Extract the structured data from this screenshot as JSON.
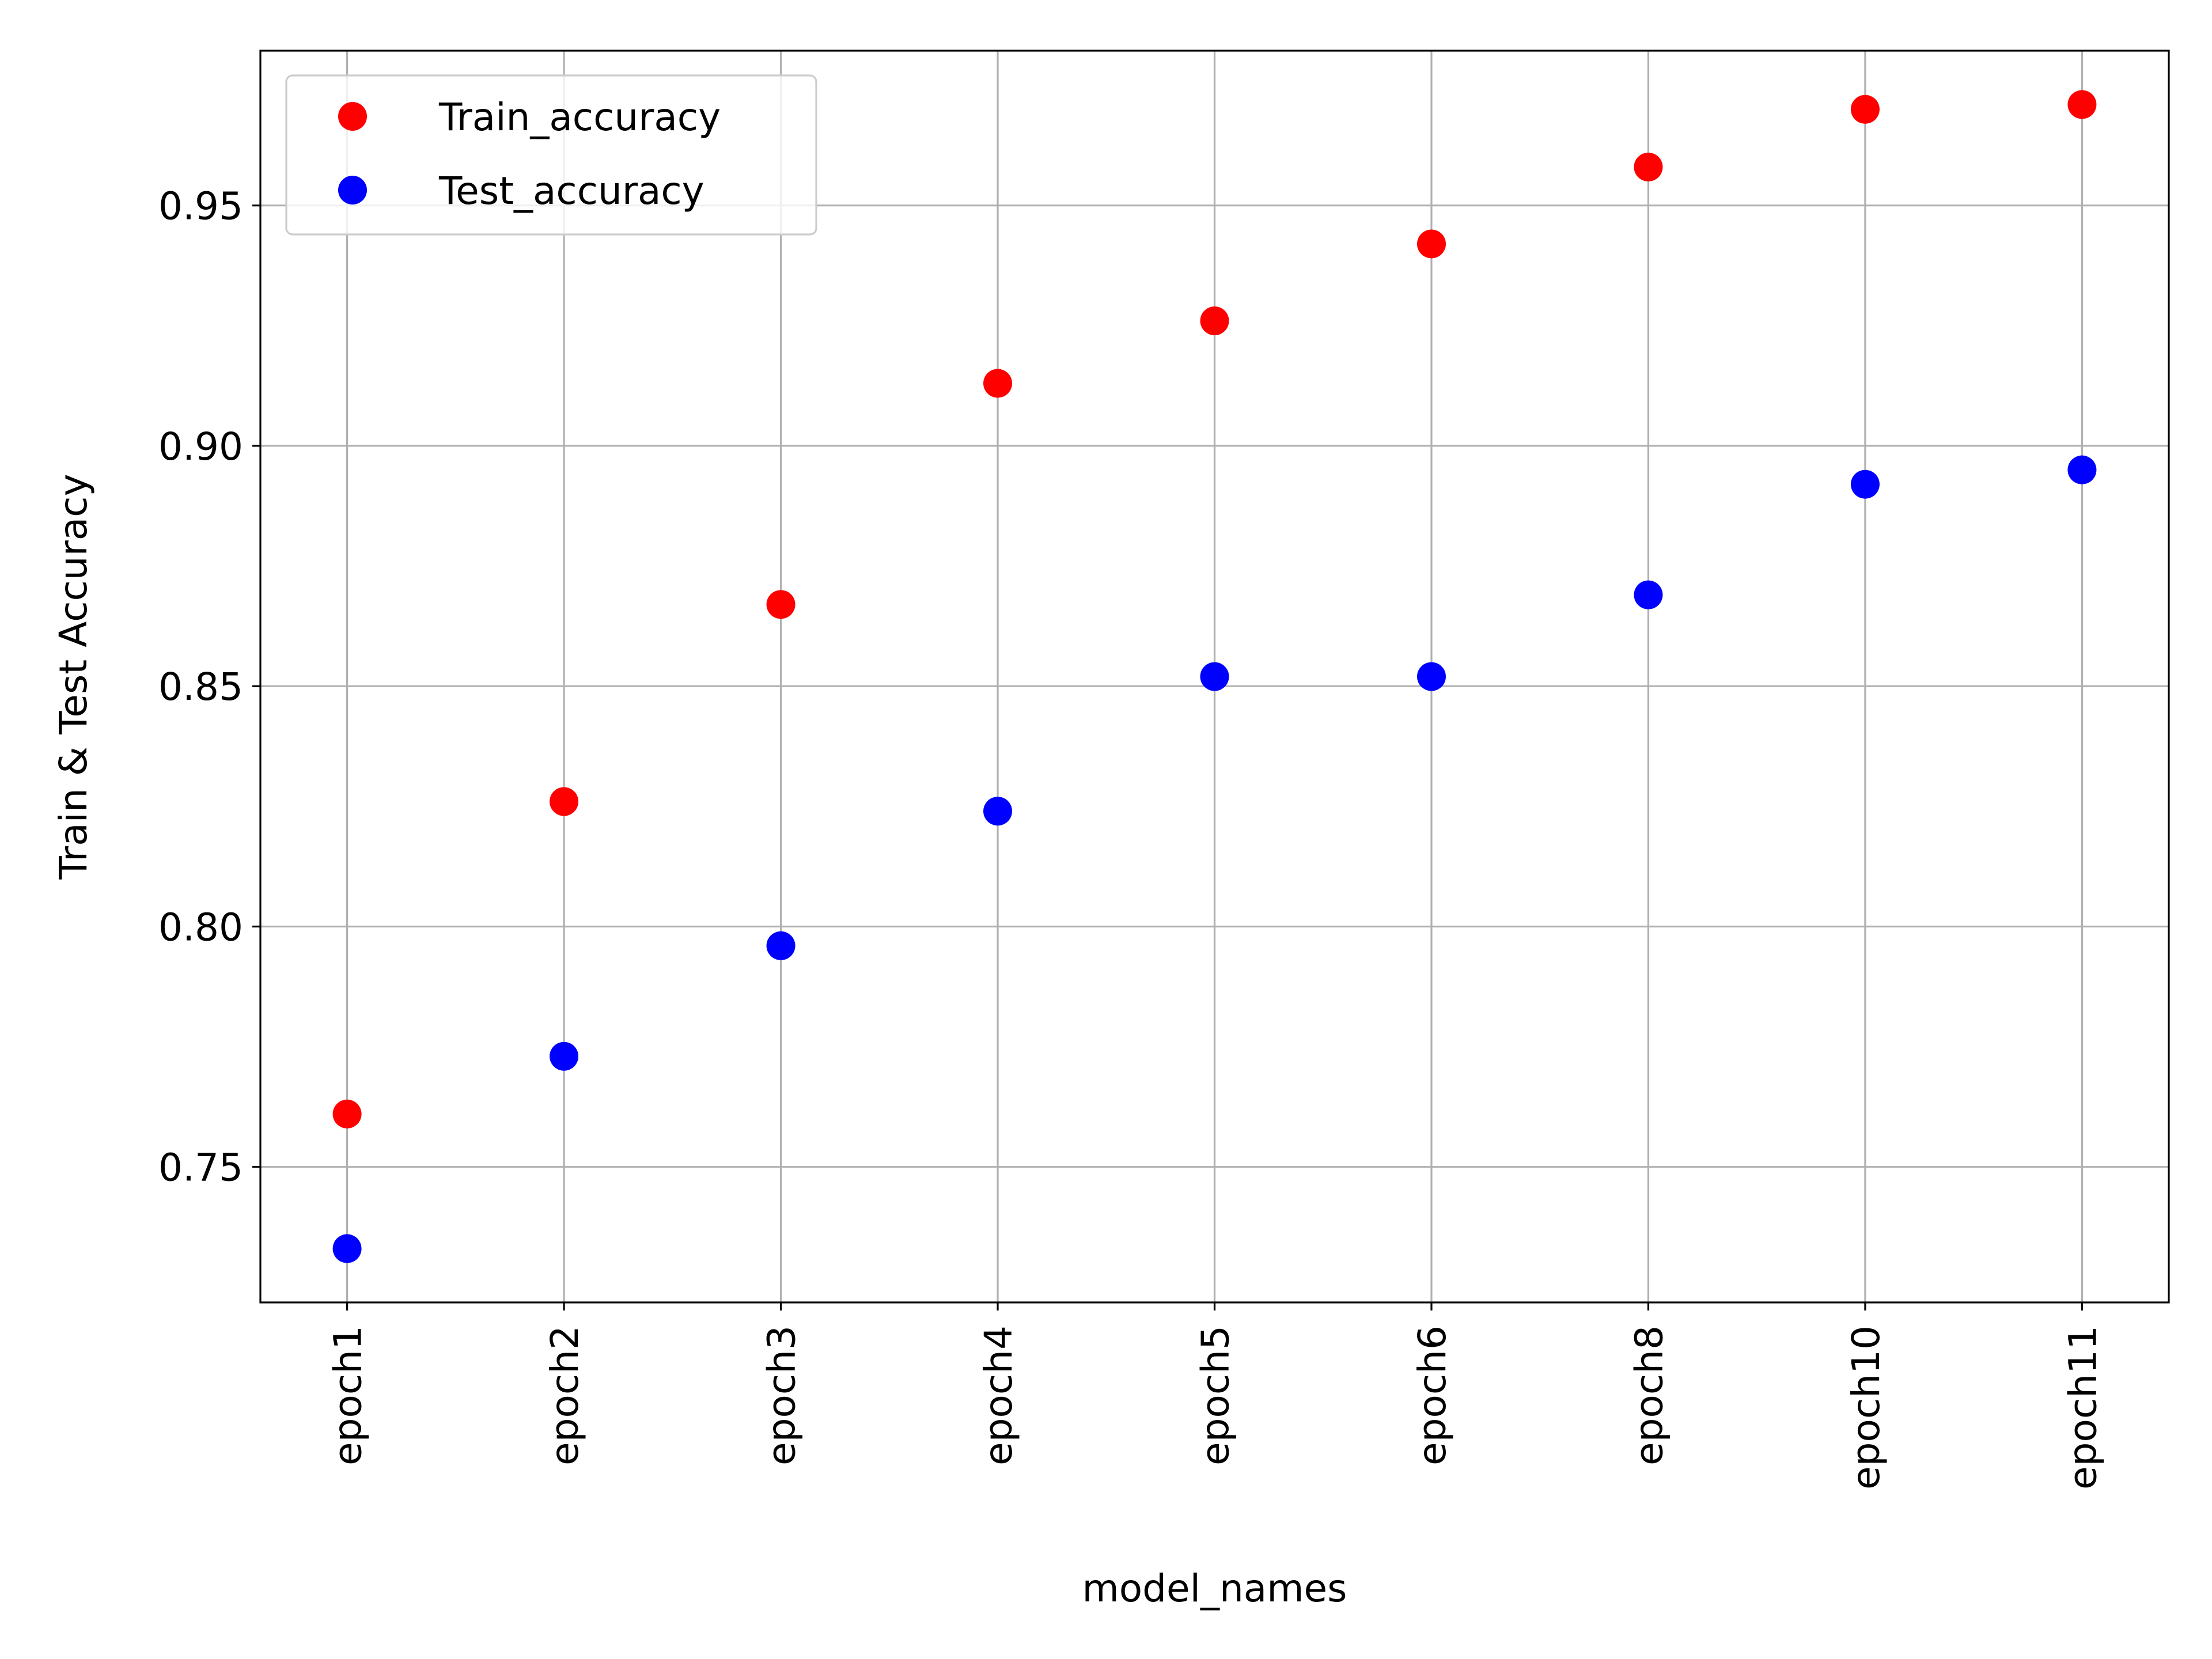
{
  "chart_data": {
    "type": "scatter",
    "title": "",
    "xlabel": "model_names",
    "ylabel": "Train & Test Accuracy",
    "categories": [
      "epoch1",
      "epoch2",
      "epoch3",
      "epoch4",
      "epoch5",
      "epoch6",
      "epoch8",
      "epoch10",
      "epoch11"
    ],
    "series": [
      {
        "name": "Train_accuracy",
        "color": "#ff0000",
        "values": [
          0.761,
          0.826,
          0.867,
          0.913,
          0.926,
          0.942,
          0.958,
          0.97,
          0.971
        ]
      },
      {
        "name": "Test_accuracy",
        "color": "#0000ff",
        "values": [
          0.733,
          0.773,
          0.796,
          0.824,
          0.852,
          0.852,
          0.869,
          0.892,
          0.895
        ]
      }
    ],
    "ylim": [
      0.7218,
      0.9822
    ],
    "yticks": [
      0.75,
      0.8,
      0.85,
      0.9,
      0.95
    ],
    "ytick_labels": [
      "0.75",
      "0.80",
      "0.85",
      "0.90",
      "0.95"
    ],
    "grid": true,
    "legend_position": "top-left"
  }
}
